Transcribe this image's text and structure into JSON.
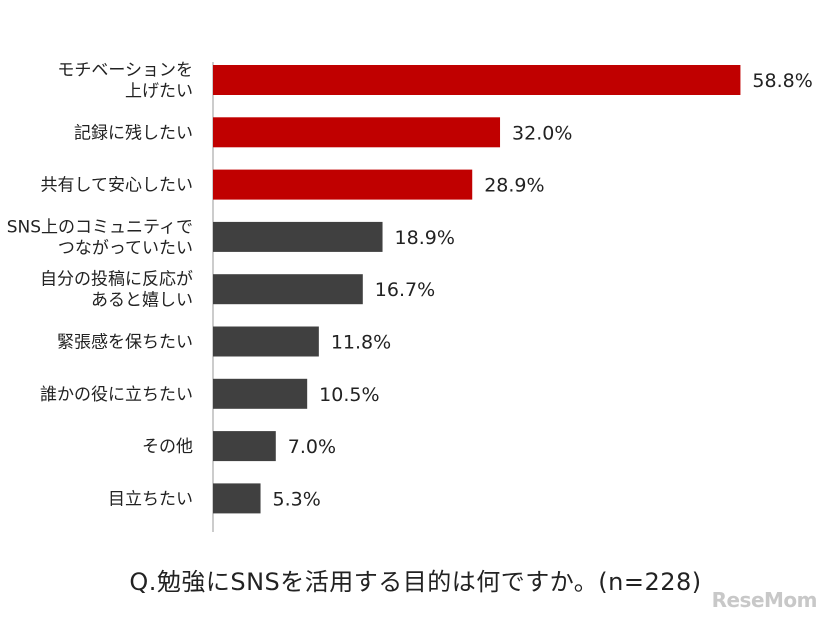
{
  "chart_data": {
    "type": "bar",
    "orientation": "horizontal",
    "categories": [
      [
        "モチベーションを",
        "上げたい"
      ],
      [
        "記録に残したい"
      ],
      [
        "共有して安心したい"
      ],
      [
        "SNS上のコミュニティで",
        "つながっていたい"
      ],
      [
        "自分の投稿に反応が",
        "あると嬉しい"
      ],
      [
        "緊張感を保ちたい"
      ],
      [
        "誰かの役に立ちたい"
      ],
      [
        "その他"
      ],
      [
        "目立ちたい"
      ]
    ],
    "values": [
      58.8,
      32.0,
      28.9,
      18.9,
      16.7,
      11.8,
      10.5,
      7.0,
      5.3
    ],
    "value_labels": [
      "58.8%",
      "32.0%",
      "28.9%",
      "18.9%",
      "16.7%",
      "11.8%",
      "10.5%",
      "7.0%",
      "5.3%"
    ],
    "bar_colors": [
      "#c00000",
      "#c00000",
      "#c00000",
      "#404040",
      "#404040",
      "#404040",
      "#404040",
      "#404040",
      "#404040"
    ],
    "xlim": [
      0,
      100
    ],
    "grid": false,
    "caption": "Q.勉強にSNSを活用する目的は何ですか。(n=228)"
  },
  "watermark": "ReseMom"
}
